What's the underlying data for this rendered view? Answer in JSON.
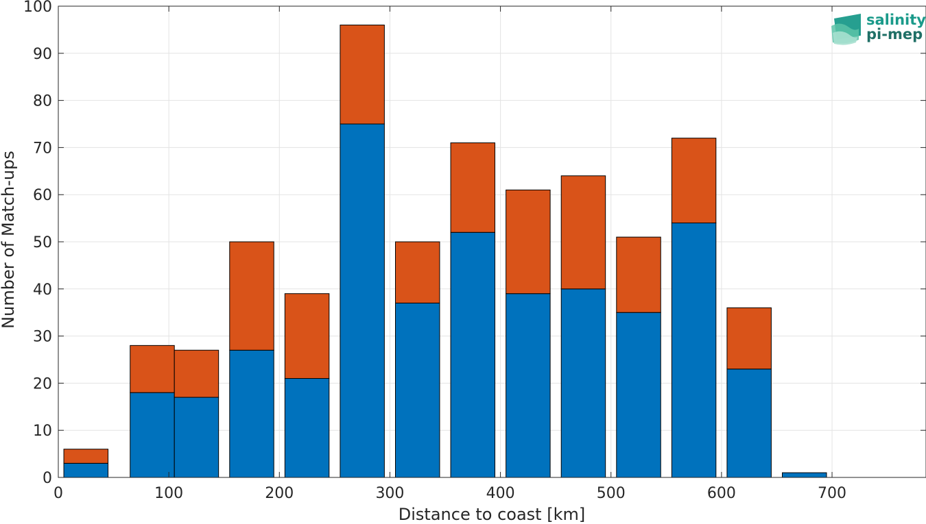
{
  "chart_data": {
    "type": "bar",
    "stacked": true,
    "x_centers": [
      25,
      85,
      125,
      175,
      225,
      275,
      325,
      375,
      425,
      475,
      525,
      575,
      625,
      675
    ],
    "series": [
      {
        "values": [
          3,
          18,
          17,
          27,
          21,
          75,
          37,
          52,
          39,
          40,
          35,
          54,
          23,
          1
        ],
        "color": "#0072BD"
      },
      {
        "values": [
          3,
          10,
          10,
          23,
          18,
          21,
          13,
          19,
          22,
          24,
          16,
          18,
          13,
          0
        ],
        "color": "#D95319"
      }
    ],
    "xlabel": "Distance to coast [km]",
    "ylabel": "Number of Match-ups",
    "xlim": [
      0,
      785
    ],
    "ylim": [
      0,
      100
    ],
    "xticks": [
      0,
      100,
      200,
      300,
      400,
      500,
      600,
      700
    ],
    "yticks": [
      0,
      10,
      20,
      30,
      40,
      50,
      60,
      70,
      80,
      90,
      100
    ],
    "bar_width_km": 40,
    "grid": true,
    "legend": "none"
  },
  "logo": {
    "line1": "salinity",
    "line2": "pi-mep",
    "icon": "wave-logo-icon",
    "color": "#1a9a8a"
  }
}
